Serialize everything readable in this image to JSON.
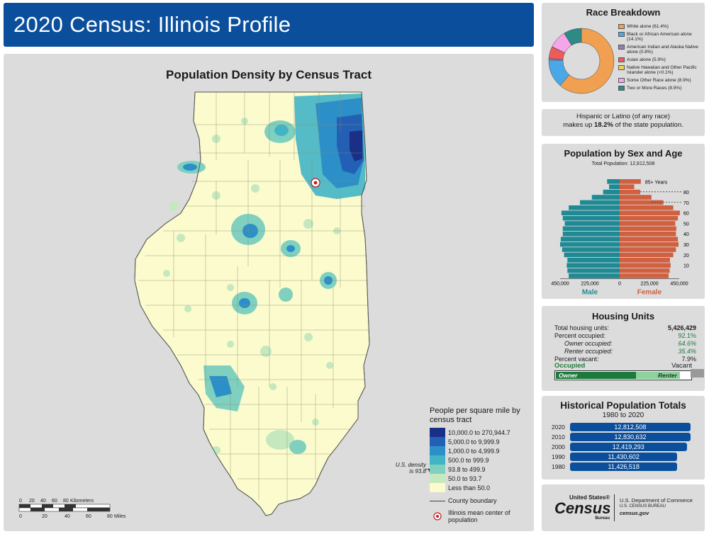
{
  "title": "2020 Census: Illinois Profile",
  "map": {
    "title": "Population Density by Census Tract",
    "legend_title": "People per square mile by census tract",
    "legend": [
      {
        "label": "10,000.0 to 270,944.7",
        "color": "#1a2f85"
      },
      {
        "label": "5,000.0 to 9,999.9",
        "color": "#2360b5"
      },
      {
        "label": "1,000.0 to 4,999.9",
        "color": "#2d8fc7"
      },
      {
        "label": "500.0 to 999.9",
        "color": "#43b4c5"
      },
      {
        "label": "93.8 to 499.9",
        "color": "#7fd0bf"
      },
      {
        "label": "50.0 to 93.7",
        "color": "#c6e8bf"
      },
      {
        "label": "Less than 50.0",
        "color": "#fbfbcd"
      }
    ],
    "county_boundary_label": "County boundary",
    "mean_center_label": "Illinois mean center of population",
    "us_density_note": "U.S. density is 93.8",
    "scale_km_label": "Kilometers",
    "scale_mi_label": "Miles",
    "scale_km_ticks": [
      "0",
      "20",
      "40",
      "60",
      "80"
    ],
    "scale_mi_ticks": [
      "0",
      "20",
      "40",
      "60",
      "80"
    ]
  },
  "race": {
    "title": "Race Breakdown",
    "items": [
      {
        "label": "White alone (61.4%)",
        "value": 61.4,
        "color": "#f0a050"
      },
      {
        "label": "Black or African American alone (14.1%)",
        "value": 14.1,
        "color": "#4aa8e8"
      },
      {
        "label": "American Indian and Alaska Native alone (0.8%)",
        "value": 0.8,
        "color": "#9a7bb8"
      },
      {
        "label": "Asian alone (5.9%)",
        "value": 5.9,
        "color": "#ee5b5b"
      },
      {
        "label": "Native Hawaiian and Other Pacific Islander alone (<0.1%)",
        "value": 0.1,
        "color": "#f3d24a"
      },
      {
        "label": "Some Other Race alone (8.9%)",
        "value": 8.9,
        "color": "#f4a6e8"
      },
      {
        "label": "Two or More Races (8.9%)",
        "value": 8.9,
        "color": "#2e8a86"
      }
    ]
  },
  "hispanic": {
    "line1": "Hispanic or Latino (of any race)",
    "line2_pre": "makes up",
    "line2_value": "18.2%",
    "line2_post": "of the state population."
  },
  "pyramid": {
    "title": "Population by Sex and Age",
    "total": "Total Population: 12,812,508",
    "male_label": "Male",
    "female_label": "Female",
    "x_ticks": [
      "450,000",
      "225,000",
      "0",
      "225,000",
      "450,000"
    ],
    "age_ticks": [
      "10",
      "20",
      "30",
      "40",
      "50",
      "60",
      "70",
      "80"
    ],
    "top_label": "85+ Years",
    "male": [
      385000,
      395000,
      400000,
      395000,
      420000,
      435000,
      450000,
      445000,
      430000,
      430000,
      415000,
      430000,
      440000,
      385000,
      300000,
      210000,
      125000,
      80000,
      95000
    ],
    "female": [
      370000,
      378000,
      385000,
      380000,
      405000,
      425000,
      445000,
      440000,
      425000,
      428000,
      420000,
      440000,
      455000,
      405000,
      330000,
      240000,
      155000,
      110000,
      160000
    ],
    "male_color": "#1f8a94",
    "female_color": "#d0603f"
  },
  "housing": {
    "title": "Housing Units",
    "rows": [
      {
        "label": "Total housing units:",
        "value": "5,426,429",
        "indent": false,
        "italic": false,
        "bold": true
      },
      {
        "label": "Percent occupied:",
        "value": "92.1%",
        "indent": false,
        "italic": false,
        "bold": false
      },
      {
        "label": "Owner occupied:",
        "value": "64.6%",
        "indent": true,
        "italic": true,
        "bold": false
      },
      {
        "label": "Renter occupied:",
        "value": "35.4%",
        "indent": true,
        "italic": true,
        "bold": false
      },
      {
        "label": "Percent vacant:",
        "value": "7.9%",
        "indent": false,
        "italic": false,
        "bold": false
      }
    ],
    "occupied_label": "Occupied",
    "vacant_label": "Vacant",
    "owner_label": "Owner",
    "renter_label": "Renter",
    "occupied_pct": 92.1,
    "owner_pct": 64.6
  },
  "history": {
    "title": "Historical Population Totals",
    "subtitle": "1980 to 2020",
    "rows": [
      {
        "year": "2020",
        "value": "12,812,508",
        "n": 12812508
      },
      {
        "year": "2010",
        "value": "12,830,632",
        "n": 12830632
      },
      {
        "year": "2000",
        "value": "12,419,293",
        "n": 12419293
      },
      {
        "year": "1990",
        "value": "11,430,602",
        "n": 11430602
      },
      {
        "year": "1980",
        "value": "11,426,518",
        "n": 11426518
      }
    ]
  },
  "logo": {
    "small": "United States®",
    "big": "Census",
    "bureau": "Bureau",
    "dept1": "U.S. Department of Commerce",
    "dept2": "U.S. CENSUS BUREAU",
    "dept3": "census.gov"
  }
}
